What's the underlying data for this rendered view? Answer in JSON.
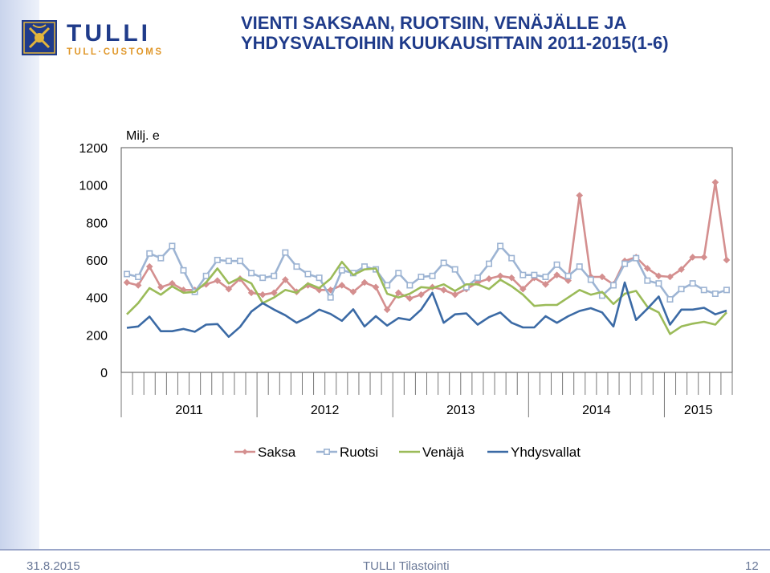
{
  "header": {
    "logo_text": "TULLI",
    "logo_sub": "TULL·CUSTOMS",
    "title_line1": "VIENTI SAKSAAN, RUOTSIIN, VENÄJÄLLE JA",
    "title_line2": "YHDYSVALTOIHIN KUUKAUSITTAIN 2011-2015(1-6)"
  },
  "footer": {
    "date": "31.8.2015",
    "center": "TULLI Tilastointi",
    "page": "12"
  },
  "chart_data": {
    "type": "line",
    "unit_label": "Milj. e",
    "ylim": [
      0,
      1200
    ],
    "yticks": [
      0,
      200,
      400,
      600,
      800,
      1000,
      1200
    ],
    "year_labels": [
      "2011",
      "2012",
      "2013",
      "2014",
      "2015"
    ],
    "months_per_year": 12,
    "legend_position": "bottom",
    "series": [
      {
        "name": "Saksa",
        "color": "#d48f8f",
        "marker": "diamond",
        "values": [
          480,
          465,
          565,
          455,
          475,
          440,
          440,
          470,
          490,
          445,
          500,
          425,
          415,
          425,
          495,
          430,
          465,
          440,
          440,
          465,
          430,
          480,
          455,
          335,
          425,
          395,
          415,
          455,
          440,
          415,
          445,
          480,
          500,
          515,
          505,
          445,
          505,
          470,
          520,
          490,
          945,
          510,
          510,
          470,
          595,
          615,
          555,
          515,
          510,
          550,
          615,
          615,
          1015,
          600
        ]
      },
      {
        "name": "Ruotsi",
        "color": "#9db4d3",
        "marker": "square",
        "values": [
          525,
          510,
          635,
          610,
          675,
          545,
          430,
          515,
          600,
          595,
          595,
          530,
          505,
          515,
          640,
          565,
          525,
          505,
          400,
          545,
          530,
          565,
          550,
          465,
          530,
          465,
          510,
          515,
          585,
          550,
          455,
          505,
          580,
          675,
          610,
          520,
          520,
          510,
          575,
          515,
          565,
          495,
          410,
          465,
          580,
          610,
          490,
          475,
          390,
          445,
          475,
          440,
          420,
          440
        ]
      },
      {
        "name": "Venäjä",
        "color": "#9bbb59",
        "marker": "none",
        "values": [
          310,
          370,
          450,
          415,
          460,
          425,
          430,
          480,
          555,
          475,
          505,
          475,
          370,
          400,
          440,
          425,
          475,
          450,
          500,
          590,
          520,
          550,
          555,
          420,
          400,
          420,
          455,
          450,
          470,
          435,
          470,
          470,
          445,
          495,
          460,
          415,
          355,
          360,
          360,
          400,
          440,
          415,
          430,
          365,
          420,
          435,
          350,
          320,
          205,
          245,
          260,
          270,
          255,
          320
        ]
      },
      {
        "name": "Yhdysvallat",
        "color": "#3b6aa5",
        "marker": "none",
        "values": [
          238,
          245,
          298,
          220,
          220,
          232,
          217,
          255,
          258,
          190,
          243,
          325,
          370,
          335,
          305,
          265,
          295,
          335,
          312,
          275,
          337,
          245,
          300,
          250,
          290,
          280,
          335,
          425,
          265,
          310,
          315,
          255,
          295,
          320,
          265,
          240,
          240,
          300,
          265,
          300,
          328,
          343,
          320,
          245,
          480,
          280,
          340,
          405,
          255,
          335,
          335,
          345,
          310,
          330
        ]
      }
    ]
  }
}
